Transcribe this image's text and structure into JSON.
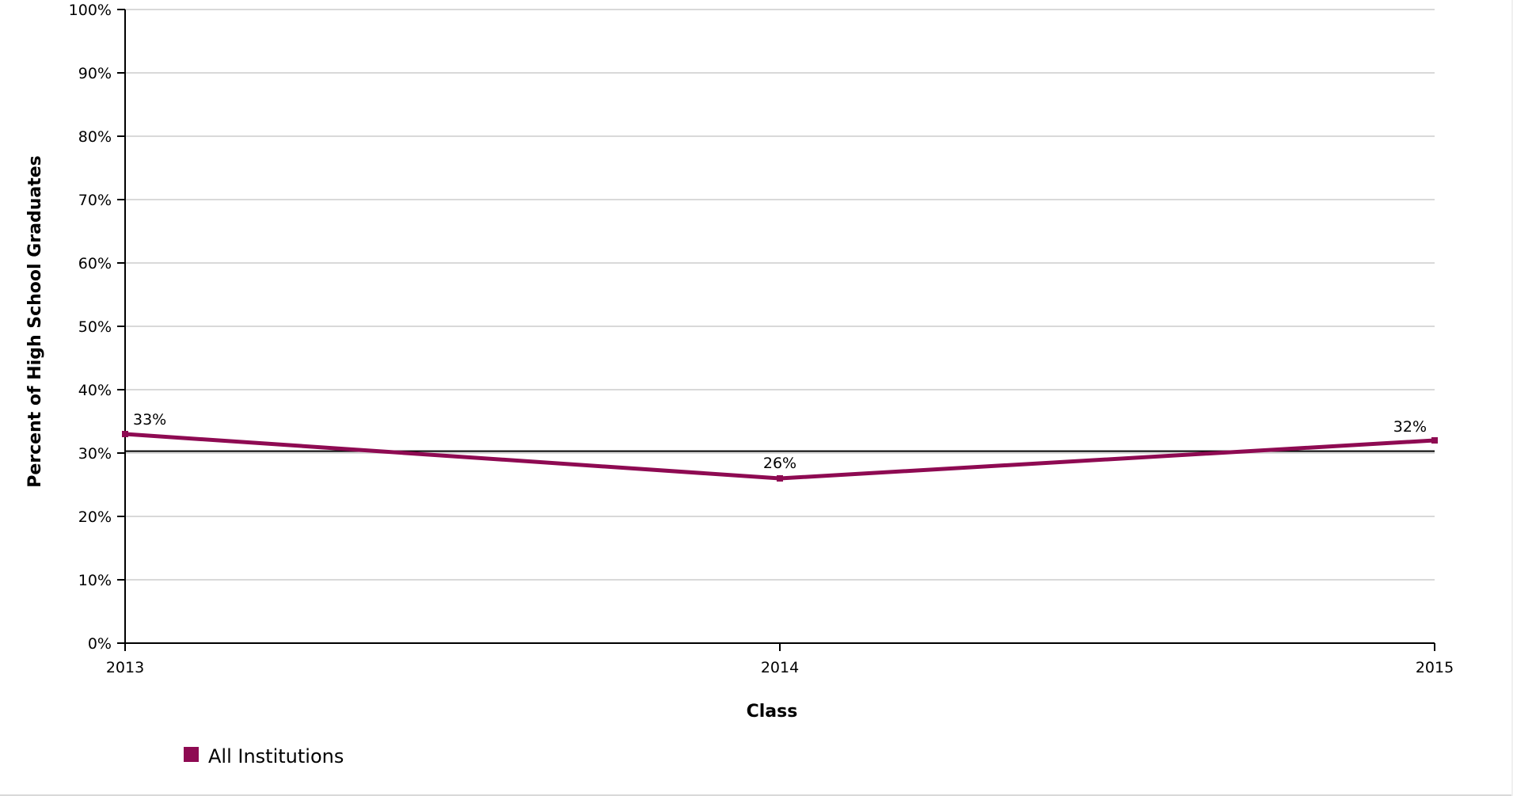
{
  "chart_data": {
    "type": "line",
    "x": [
      "2013",
      "2014",
      "2015"
    ],
    "series": [
      {
        "name": "All Institutions",
        "values": [
          33,
          26,
          32
        ],
        "labels": [
          "33%",
          "26%",
          "32%"
        ],
        "color": "#8e0a52"
      }
    ],
    "reference_line": {
      "value": 30.3,
      "color": "#000000"
    },
    "xlabel": "Class",
    "ylabel": "Percent of High School Graduates",
    "ylim": [
      0,
      100
    ],
    "yticks": [
      0,
      10,
      20,
      30,
      40,
      50,
      60,
      70,
      80,
      90,
      100
    ],
    "ytick_labels": [
      "0%",
      "10%",
      "20%",
      "30%",
      "40%",
      "50%",
      "60%",
      "70%",
      "80%",
      "90%",
      "100%"
    ],
    "grid": true,
    "grid_color": "#d9d9d9",
    "legend_position": "bottom-left"
  }
}
